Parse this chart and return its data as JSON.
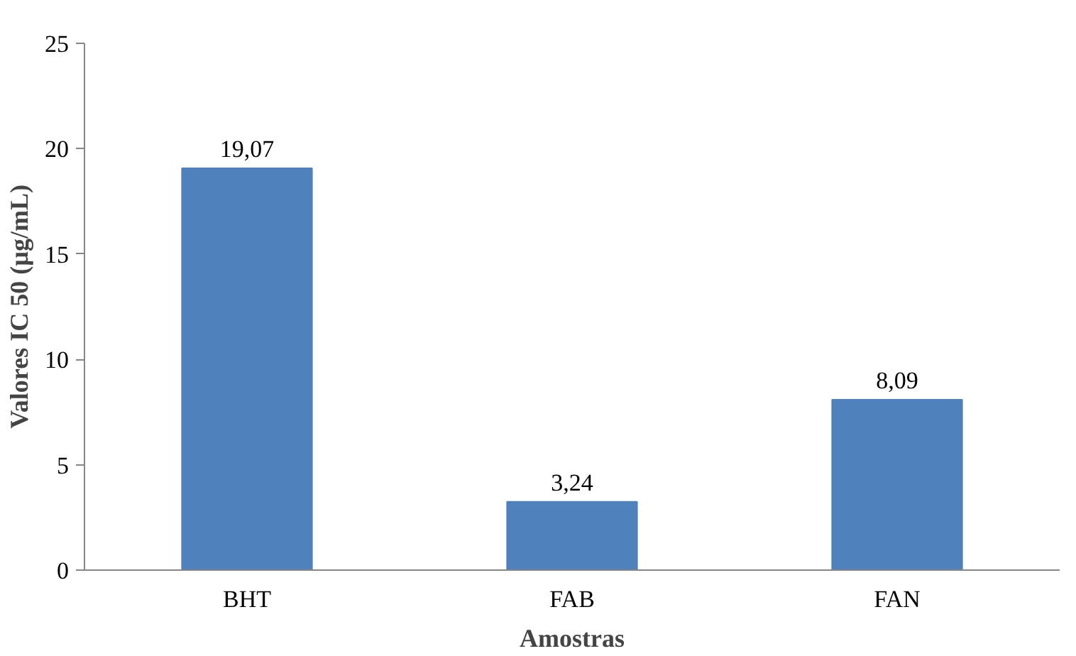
{
  "chart_data": {
    "type": "bar",
    "xlabel": "Amostras",
    "ylabel": "Valores IC 50 (µg/mL)",
    "categories": [
      "BHT",
      "FAB",
      "FAN"
    ],
    "values": [
      19.07,
      3.24,
      8.09
    ],
    "value_labels": [
      "19,07",
      "3,24",
      "8,09"
    ],
    "color": "#4f81bd",
    "ylim": [
      0,
      25
    ],
    "yticks": [
      0,
      5,
      10,
      15,
      20,
      25
    ],
    "grid": false
  }
}
